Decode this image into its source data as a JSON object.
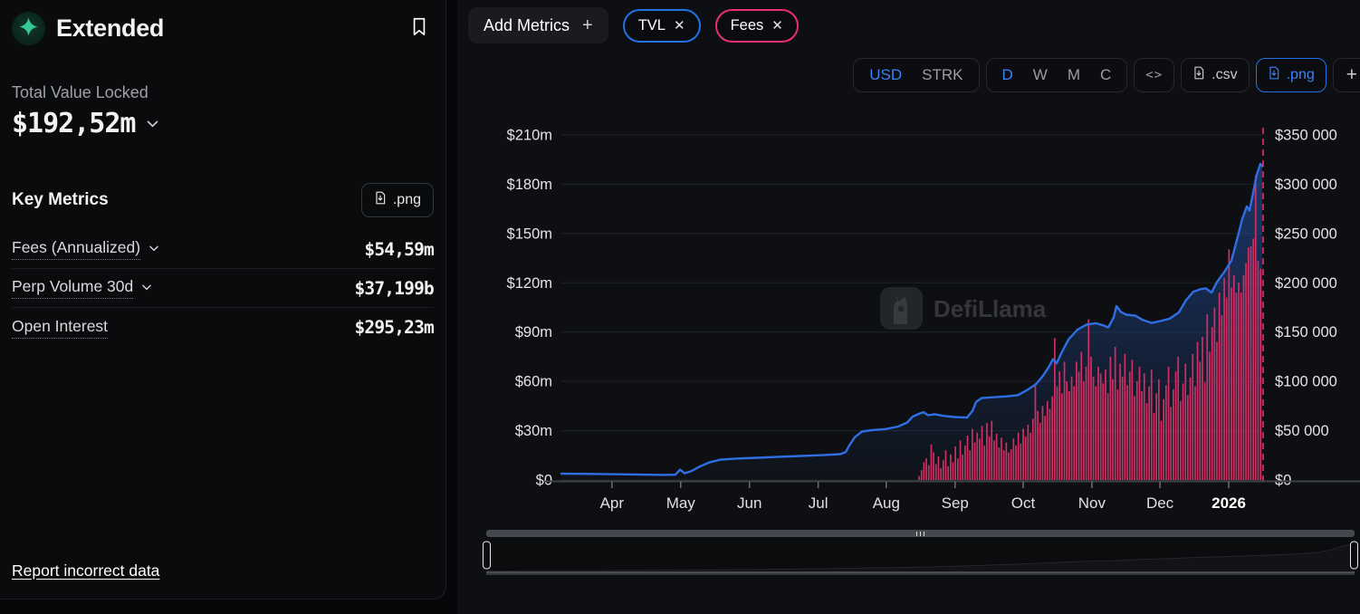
{
  "colors": {
    "accent_blue": "#2172e5",
    "text_blue": "#3b82f6",
    "accent_pink": "#ec2e72",
    "bar_pink": "#cf2f63",
    "line_blue": "#2f6fe4"
  },
  "header": {
    "title": "Extended",
    "bookmark_icon": "bookmark-icon",
    "logo_icon": "sparkle-star-icon"
  },
  "tvl": {
    "label": "Total Value Locked",
    "value": "$192,52m"
  },
  "key_metrics": {
    "title": "Key Metrics",
    "png_button": ".png",
    "rows": [
      {
        "label": "Fees (Annualized)",
        "value": "$54,59m",
        "has_dropdown": true
      },
      {
        "label": "Perp Volume 30d",
        "value": "$37,199b",
        "has_dropdown": true
      },
      {
        "label": "Open Interest",
        "value": "$295,23m",
        "has_dropdown": false
      }
    ]
  },
  "report_link": "Report incorrect data",
  "toolbar": {
    "add_metrics": "Add Metrics",
    "add_metrics_plus": "+",
    "chips": [
      {
        "label": "TVL",
        "close": "✕",
        "border_color": "#2172e5"
      },
      {
        "label": "Fees",
        "close": "✕",
        "border_color": "#ec2e72"
      }
    ],
    "currency": {
      "options": [
        "USD",
        "STRK"
      ],
      "active": "USD"
    },
    "intervals": {
      "options": [
        "D",
        "W",
        "M",
        "C"
      ],
      "active": "D"
    },
    "embed_label": "<>",
    "csv_label": ".csv",
    "png_label": ".png",
    "plus_label": "+"
  },
  "chart_data": {
    "type": "mixed",
    "title": "",
    "watermark": "DefiLlama",
    "left_axis": {
      "unit": "USD millions",
      "min": 0,
      "max": 210,
      "ticks": [
        "$210m",
        "$180m",
        "$150m",
        "$120m",
        "$90m",
        "$60m",
        "$30m",
        "$0"
      ]
    },
    "right_axis": {
      "unit": "USD",
      "min": 0,
      "max": 350000,
      "ticks": [
        "$350 000",
        "$300 000",
        "$250 000",
        "$200 000",
        "$150 000",
        "$100 000",
        "$50 000",
        "$0"
      ]
    },
    "x_axis": {
      "labels": [
        "Apr",
        "May",
        "Jun",
        "Jul",
        "Aug",
        "Sep",
        "Oct",
        "Nov",
        "Dec",
        "2026"
      ],
      "fracs": [
        0.072,
        0.17,
        0.268,
        0.366,
        0.463,
        0.561,
        0.658,
        0.756,
        0.853,
        0.951
      ],
      "bold_last": true
    },
    "cursor_line": {
      "frac": 1.0,
      "style": "dashed",
      "color": "#ec2e72"
    },
    "grid": "horizontal",
    "legend": "none",
    "series": [
      {
        "name": "TVL",
        "type": "line",
        "axis": "left",
        "color": "#2f6fe4",
        "unit": "USD millions",
        "points": [
          [
            0.0,
            3.8
          ],
          [
            0.0413,
            3.7
          ],
          [
            0.0929,
            3.4
          ],
          [
            0.1445,
            3.1
          ],
          [
            0.1626,
            3.2
          ],
          [
            0.169,
            6.3
          ],
          [
            0.1755,
            4.1
          ],
          [
            0.1858,
            5.5
          ],
          [
            0.1987,
            8.5
          ],
          [
            0.2116,
            10.8
          ],
          [
            0.2271,
            12.4
          ],
          [
            0.2477,
            13.0
          ],
          [
            0.2787,
            13.5
          ],
          [
            0.3097,
            14.1
          ],
          [
            0.3406,
            14.6
          ],
          [
            0.3716,
            15.1
          ],
          [
            0.3974,
            15.7
          ],
          [
            0.4052,
            17.0
          ],
          [
            0.4103,
            21.0
          ],
          [
            0.4181,
            26.0
          ],
          [
            0.4284,
            29.5
          ],
          [
            0.4439,
            30.4
          ],
          [
            0.4619,
            31.0
          ],
          [
            0.48,
            32.5
          ],
          [
            0.4929,
            35.0
          ],
          [
            0.5006,
            38.5
          ],
          [
            0.511,
            40.5
          ],
          [
            0.5161,
            41.3
          ],
          [
            0.5226,
            39.4
          ],
          [
            0.5316,
            40.0
          ],
          [
            0.5445,
            39.0
          ],
          [
            0.56,
            38.3
          ],
          [
            0.5781,
            38.0
          ],
          [
            0.5858,
            42.0
          ],
          [
            0.591,
            47.5
          ],
          [
            0.5987,
            49.8
          ],
          [
            0.6142,
            50.3
          ],
          [
            0.6323,
            50.8
          ],
          [
            0.6503,
            51.6
          ],
          [
            0.6632,
            54.6
          ],
          [
            0.6761,
            58.2
          ],
          [
            0.6865,
            63.5
          ],
          [
            0.6942,
            68.5
          ],
          [
            0.7006,
            73.5
          ],
          [
            0.7058,
            71.0
          ],
          [
            0.7123,
            77.0
          ],
          [
            0.7226,
            85.5
          ],
          [
            0.7355,
            91.5
          ],
          [
            0.7484,
            94.6
          ],
          [
            0.7613,
            95.4
          ],
          [
            0.7716,
            94.2
          ],
          [
            0.7794,
            92.8
          ],
          [
            0.7871,
            99.0
          ],
          [
            0.791,
            105.8
          ],
          [
            0.7974,
            102.2
          ],
          [
            0.8052,
            100.6
          ],
          [
            0.8181,
            100.0
          ],
          [
            0.8284,
            97.4
          ],
          [
            0.8413,
            95.6
          ],
          [
            0.8542,
            96.8
          ],
          [
            0.8671,
            98.2
          ],
          [
            0.88,
            102.0
          ],
          [
            0.8903,
            109.5
          ],
          [
            0.9006,
            114.6
          ],
          [
            0.911,
            116.2
          ],
          [
            0.9187,
            116.6
          ],
          [
            0.9265,
            114.0
          ],
          [
            0.9342,
            120.5
          ],
          [
            0.9445,
            126.5
          ],
          [
            0.9548,
            133.5
          ],
          [
            0.9626,
            146.0
          ],
          [
            0.9703,
            159.0
          ],
          [
            0.9768,
            166.5
          ],
          [
            0.9806,
            164.0
          ],
          [
            0.9858,
            175.0
          ],
          [
            0.991,
            186.0
          ],
          [
            0.9961,
            192.5
          ],
          [
            0.9987,
            191.0
          ]
        ]
      },
      {
        "name": "Fees",
        "type": "bar",
        "axis": "right",
        "color": "#cf2f63",
        "unit": "USD",
        "x_start_frac": 0.508,
        "x_end_frac": 0.998,
        "values": [
          4000,
          10000,
          18000,
          22000,
          15000,
          36000,
          28000,
          16000,
          24000,
          12000,
          20000,
          30000,
          14000,
          26000,
          18000,
          34000,
          22000,
          40000,
          26000,
          35000,
          45000,
          30000,
          52000,
          38000,
          48000,
          42000,
          55000,
          35000,
          58000,
          44000,
          60000,
          40000,
          47000,
          33000,
          43000,
          30000,
          38000,
          28000,
          31000,
          42000,
          35000,
          48000,
          37000,
          52000,
          44000,
          56000,
          48000,
          62000,
          98000,
          70000,
          58000,
          75000,
          65000,
          80000,
          72000,
          85000,
          144000,
          95000,
          110000,
          88000,
          120000,
          100000,
          90000,
          105000,
          95000,
          120000,
          110000,
          130000,
          100000,
          115000,
          163000,
          125000,
          105000,
          95000,
          115000,
          108000,
          98000,
          112000,
          88000,
          125000,
          102000,
          135000,
          92000,
          118000,
          105000,
          128000,
          96000,
          110000,
          122000,
          85000,
          100000,
          115000,
          90000,
          108000,
          78000,
          95000,
          112000,
          68000,
          88000,
          102000,
          60000,
          82000,
          96000,
          115000,
          74000,
          92000,
          110000,
          125000,
          80000,
          98000,
          118000,
          86000,
          104000,
          128000,
          95000,
          140000,
          120000,
          145000,
          99000,
          168000,
          130000,
          155000,
          175000,
          140000,
          190000,
          167000,
          205000,
          185000,
          234000,
          195000,
          208000,
          190000,
          200000,
          190000,
          208000,
          220000,
          236000,
          237000,
          245000,
          309000,
          222000,
          214000
        ]
      }
    ],
    "minimap": {
      "points": [
        [
          0,
          0.06
        ],
        [
          0.05,
          0.065
        ],
        [
          0.1,
          0.07
        ],
        [
          0.15,
          0.075
        ],
        [
          0.2,
          0.08
        ],
        [
          0.25,
          0.09
        ],
        [
          0.3,
          0.1
        ],
        [
          0.35,
          0.115
        ],
        [
          0.4,
          0.13
        ],
        [
          0.45,
          0.15
        ],
        [
          0.5,
          0.17
        ],
        [
          0.55,
          0.2
        ],
        [
          0.6,
          0.24
        ],
        [
          0.63,
          0.27
        ],
        [
          0.66,
          0.3
        ],
        [
          0.69,
          0.33
        ],
        [
          0.72,
          0.34
        ],
        [
          0.75,
          0.38
        ],
        [
          0.78,
          0.4
        ],
        [
          0.8,
          0.42
        ],
        [
          0.82,
          0.44
        ],
        [
          0.84,
          0.45
        ],
        [
          0.86,
          0.47
        ],
        [
          0.88,
          0.48
        ],
        [
          0.9,
          0.5
        ],
        [
          0.92,
          0.52
        ],
        [
          0.94,
          0.54
        ],
        [
          0.96,
          0.58
        ],
        [
          0.975,
          0.66
        ],
        [
          0.985,
          0.74
        ],
        [
          1,
          0.82
        ]
      ]
    }
  }
}
